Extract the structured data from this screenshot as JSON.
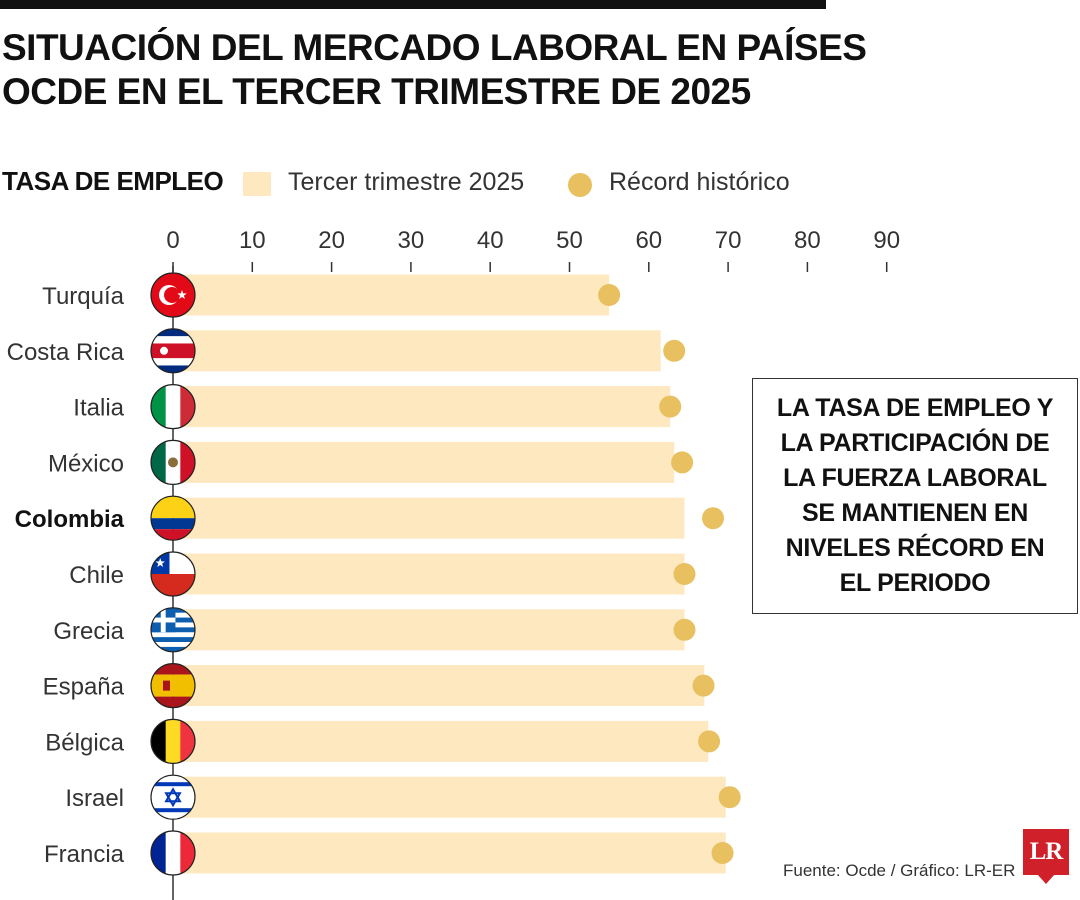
{
  "title_lines": [
    "SITUACIÓN DEL MERCADO LABORAL EN PAÍSES",
    "OCDE EN EL TERCER TRIMESTRE DE 2025"
  ],
  "callout": "LA TASA DE EMPLEO Y LA PARTICIPACIÓN DE LA FUERZA LABORAL SE MANTIENEN EN NIVELES RÉCORD EN EL PERIODO",
  "source": "Fuente: Ocde / Gráfico: LR-ER",
  "logo_text": "LR",
  "colors": {
    "bar": "#fde8bf",
    "dot": "#e8c060",
    "axis": "#333333"
  },
  "chart_data": {
    "type": "bar",
    "orientation": "horizontal",
    "title": "TASA DE EMPLEO",
    "categories": [
      "Turquía",
      "Costa Rica",
      "Italia",
      "México",
      "Colombia",
      "Chile",
      "Grecia",
      "España",
      "Bélgica",
      "Israel",
      "Francia"
    ],
    "highlight": "Colombia",
    "series": [
      {
        "name": "Tercer trimestre 2025",
        "kind": "bar",
        "values": [
          55,
          61.5,
          62.7,
          63.2,
          64.5,
          64.5,
          64.5,
          67,
          67.5,
          69.7,
          69.7
        ]
      },
      {
        "name": "Récord histórico",
        "kind": "dot",
        "values": [
          55,
          63.2,
          62.7,
          64.2,
          68.1,
          64.5,
          64.5,
          66.9,
          67.6,
          70.2,
          69.3
        ]
      }
    ],
    "xticks": [
      0,
      10,
      20,
      30,
      40,
      50,
      60,
      70,
      80,
      90
    ],
    "xlim": [
      0,
      90
    ],
    "flags": [
      "turkey",
      "costa-rica",
      "italy",
      "mexico",
      "colombia",
      "chile",
      "greece",
      "spain",
      "belgium",
      "israel",
      "france"
    ]
  }
}
